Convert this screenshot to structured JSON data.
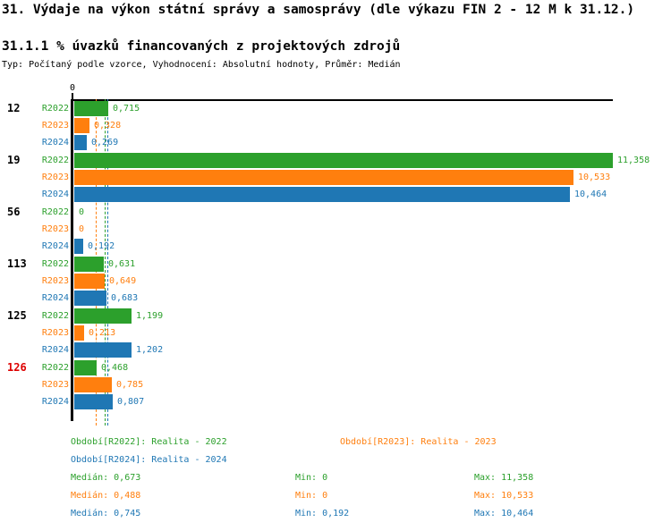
{
  "title": "31. Výdaje na výkon státní správy a samosprávy (dle výkazu FIN 2 - 12 M k 31.12.)",
  "subtitle": "31.1.1 % úvazků financovaných z projektových zdrojů",
  "meta": "Typ: Počítaný podle vzorce, Vyhodnocení: Absolutní hodnoty, Průměr: Medián",
  "colors": {
    "series": {
      "R2022": "#2ca02c",
      "R2023": "#ff7f0e",
      "R2024": "#1f77b4"
    },
    "highlight_label": "#dd0000",
    "group_label": "#000000",
    "axis": "#000000"
  },
  "chart_data": {
    "type": "bar",
    "orientation": "horizontal",
    "series_names": [
      "R2022",
      "R2023",
      "R2024"
    ],
    "axis": {
      "zero_label": "0",
      "xmin": 0,
      "xmax": 11.4,
      "grid": false
    },
    "groups": [
      {
        "label": "12",
        "highlight": false,
        "values": [
          0.715,
          0.328,
          0.269
        ],
        "value_labels": [
          "0,715",
          "0,328",
          "0,269"
        ]
      },
      {
        "label": "19",
        "highlight": false,
        "values": [
          11.358,
          10.533,
          10.464
        ],
        "value_labels": [
          "11,358",
          "10,533",
          "10,464"
        ]
      },
      {
        "label": "56",
        "highlight": false,
        "values": [
          0,
          0,
          0.192
        ],
        "value_labels": [
          "0",
          "0",
          "0,192"
        ]
      },
      {
        "label": "113",
        "highlight": false,
        "values": [
          0.631,
          0.649,
          0.683
        ],
        "value_labels": [
          "0,631",
          "0,649",
          "0,683"
        ]
      },
      {
        "label": "125",
        "highlight": false,
        "values": [
          1.199,
          0.213,
          1.202
        ],
        "value_labels": [
          "1,199",
          "0,213",
          "1,202"
        ]
      },
      {
        "label": "126",
        "highlight": true,
        "values": [
          0.468,
          0.785,
          0.807
        ],
        "value_labels": [
          "0,468",
          "0,785",
          "0,807"
        ]
      }
    ],
    "median_lines": [
      {
        "series": "R2022",
        "value": 0.673
      },
      {
        "series": "R2023",
        "value": 0.488
      },
      {
        "series": "R2024",
        "value": 0.745
      }
    ],
    "legend_position": "bottom"
  },
  "legend": {
    "items": [
      {
        "series": "R2022",
        "label": "Období[R2022]: Realita - 2022"
      },
      {
        "series": "R2023",
        "label": "Období[R2023]: Realita - 2023"
      },
      {
        "series": "R2024",
        "label": "Období[R2024]: Realita - 2024"
      }
    ]
  },
  "stats": {
    "rows": [
      {
        "series": "R2022",
        "median": "Medián: 0,673",
        "min": "Min: 0",
        "max": "Max: 11,358"
      },
      {
        "series": "R2023",
        "median": "Medián: 0,488",
        "min": "Min: 0",
        "max": "Max: 10,533"
      },
      {
        "series": "R2024",
        "median": "Medián: 0,745",
        "min": "Min: 0,192",
        "max": "Max: 10,464"
      }
    ]
  }
}
